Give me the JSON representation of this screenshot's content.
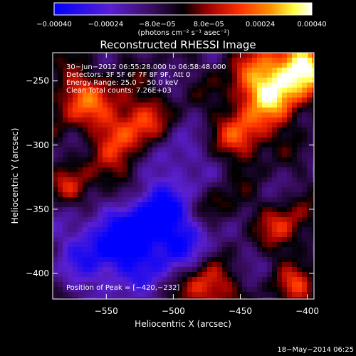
{
  "chart_data": {
    "type": "heatmap",
    "title": "Reconstructed RHESSI Image",
    "xlabel": "Heliocentric X (arcsec)",
    "ylabel": "Heliocentric Y (arcsec)",
    "xlim": [
      -590,
      -395
    ],
    "ylim": [
      -420,
      -228
    ],
    "x_ticks": [
      -550,
      -500,
      -450,
      -400
    ],
    "y_ticks": [
      -400,
      -350,
      -300,
      -250
    ],
    "x_tick_labels": [
      "−550",
      "−500",
      "−450",
      "−400"
    ],
    "y_tick_labels": [
      "−400",
      "−350",
      "−300",
      "−250"
    ],
    "grid": false,
    "colorbar": {
      "vmin": -0.0004,
      "vmax": 0.0004,
      "tick_labels": [
        "−0.00040",
        "−0.00024",
        "−8.0e−05",
        "8.0e−05",
        "0.00024",
        "0.00040"
      ],
      "units": "(photons cm⁻² s⁻¹ asec⁻²)",
      "colors": [
        "#0000ff",
        "#5a1fd0",
        "#3a0c60",
        "#000000",
        "#a00000",
        "#ff3000",
        "#ff9000",
        "#ffff40",
        "#ffffff"
      ]
    },
    "annotations": [
      "30−Jun−2012 06:55:28.000 to 06:58:48.000",
      "Detectors: 3F 5F 6F 7F 8F 9F, Att 0",
      "Energy Range: 25.0 − 50.0 keV",
      "Clean     Total counts: 7.26E+03"
    ],
    "peak_label": "Position of Peak = [−420,−232]",
    "peak": [
      -420,
      -232
    ],
    "timestamp": "18−May−2014 06:25"
  }
}
